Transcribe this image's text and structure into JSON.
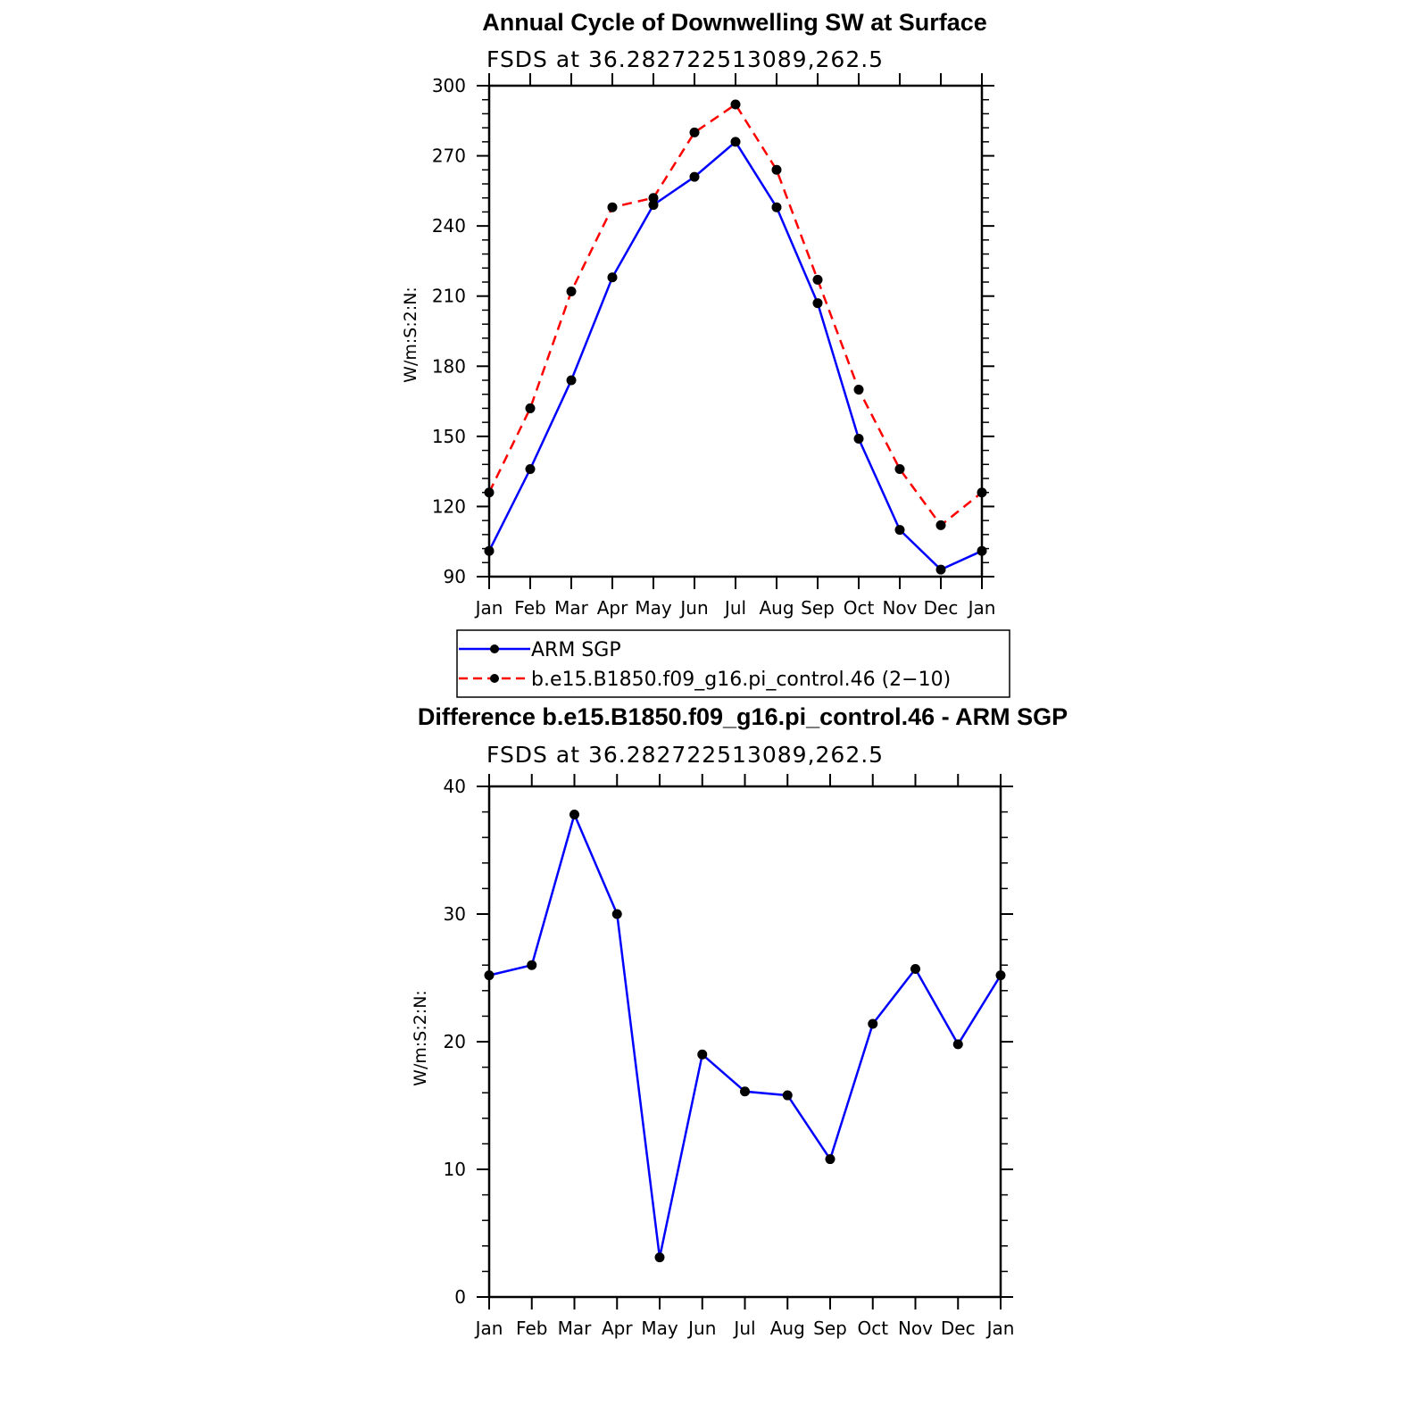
{
  "chart_data": [
    {
      "type": "line",
      "title": "Annual Cycle of Downwelling SW at Surface",
      "subtitle": "FSDS at 36.282722513089,262.5",
      "ylabel": "W/m:S:2:N:",
      "categories": [
        "Jan",
        "Feb",
        "Mar",
        "Apr",
        "May",
        "Jun",
        "Jul",
        "Aug",
        "Sep",
        "Oct",
        "Nov",
        "Dec",
        "Jan"
      ],
      "ylim": [
        90,
        300
      ],
      "yticks": [
        90,
        120,
        150,
        180,
        210,
        240,
        270,
        300
      ],
      "legend_position": "below",
      "series": [
        {
          "name": "ARM SGP",
          "color": "#0000ff",
          "dash": "solid",
          "values": [
            101,
            136,
            174,
            218,
            249,
            261,
            276,
            248,
            207,
            149,
            110,
            93,
            101
          ]
        },
        {
          "name": "b.e15.B1850.f09_g16.pi_control.46 (2−10)",
          "color": "#ff0000",
          "dash": "dashed",
          "values": [
            126,
            162,
            212,
            248,
            252,
            280,
            292,
            264,
            217,
            170,
            136,
            112,
            126
          ]
        }
      ]
    },
    {
      "type": "line",
      "title": "Difference b.e15.B1850.f09_g16.pi_control.46 - ARM SGP",
      "subtitle": "FSDS at 36.282722513089,262.5",
      "ylabel": "W/m:S:2:N:",
      "categories": [
        "Jan",
        "Feb",
        "Mar",
        "Apr",
        "May",
        "Jun",
        "Jul",
        "Aug",
        "Sep",
        "Oct",
        "Nov",
        "Dec",
        "Jan"
      ],
      "ylim": [
        0,
        40
      ],
      "yticks": [
        0,
        10,
        20,
        30,
        40
      ],
      "series": [
        {
          "color": "#0000ff",
          "dash": "solid",
          "values": [
            25.2,
            26.0,
            37.8,
            30.0,
            3.1,
            19.0,
            16.1,
            15.8,
            10.8,
            21.4,
            25.7,
            19.8,
            25.2
          ]
        }
      ]
    }
  ]
}
